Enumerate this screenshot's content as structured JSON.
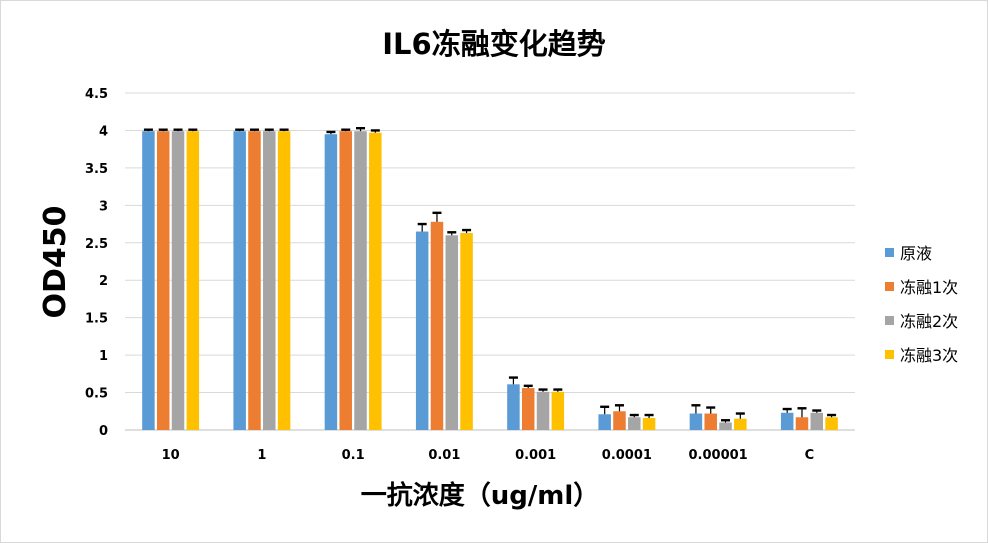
{
  "chart_data": {
    "type": "bar",
    "title": "IL6冻融变化趋势",
    "xlabel": "一抗浓度（ug/ml）",
    "ylabel": "OD450",
    "ylim": [
      0,
      4.5
    ],
    "yticks": [
      "0",
      "0.5",
      "1",
      "1.5",
      "2",
      "2.5",
      "3",
      "3.5",
      "4",
      "4.5"
    ],
    "categories": [
      "10",
      "1",
      "0.1",
      "0.01",
      "0.001",
      "0.0001",
      "0.00001",
      "C"
    ],
    "grid": true,
    "legend_position": "right",
    "series": [
      {
        "name": "原液",
        "color": "#5b9bd5",
        "values": [
          3.99,
          3.99,
          3.95,
          2.65,
          0.61,
          0.21,
          0.22,
          0.23
        ],
        "error_top": [
          4.01,
          4.01,
          3.98,
          2.75,
          0.7,
          0.31,
          0.33,
          0.28
        ]
      },
      {
        "name": "冻融1次",
        "color": "#ed7d31",
        "values": [
          3.99,
          3.99,
          3.99,
          2.78,
          0.56,
          0.25,
          0.22,
          0.17
        ],
        "error_top": [
          4.01,
          4.01,
          4.01,
          2.9,
          0.59,
          0.33,
          0.3,
          0.29
        ]
      },
      {
        "name": "冻融2次",
        "color": "#a5a5a5",
        "values": [
          3.99,
          3.99,
          3.99,
          2.6,
          0.51,
          0.17,
          0.1,
          0.23
        ],
        "error_top": [
          4.01,
          4.01,
          4.03,
          2.64,
          0.54,
          0.2,
          0.13,
          0.26
        ]
      },
      {
        "name": "冻融3次",
        "color": "#ffc000",
        "values": [
          3.99,
          3.99,
          3.97,
          2.63,
          0.51,
          0.16,
          0.15,
          0.17
        ],
        "error_top": [
          4.01,
          4.01,
          4.0,
          2.67,
          0.54,
          0.2,
          0.22,
          0.2
        ]
      }
    ]
  }
}
